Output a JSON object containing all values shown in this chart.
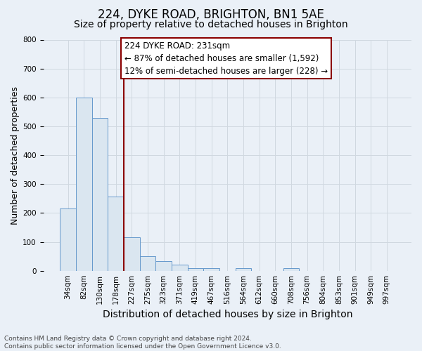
{
  "title": "224, DYKE ROAD, BRIGHTON, BN1 5AE",
  "subtitle": "Size of property relative to detached houses in Brighton",
  "xlabel": "Distribution of detached houses by size in Brighton",
  "ylabel": "Number of detached properties",
  "footer_line1": "Contains HM Land Registry data © Crown copyright and database right 2024.",
  "footer_line2": "Contains public sector information licensed under the Open Government Licence v3.0.",
  "bar_labels": [
    "34sqm",
    "82sqm",
    "130sqm",
    "178sqm",
    "227sqm",
    "275sqm",
    "323sqm",
    "371sqm",
    "419sqm",
    "467sqm",
    "516sqm",
    "564sqm",
    "612sqm",
    "660sqm",
    "708sqm",
    "756sqm",
    "804sqm",
    "853sqm",
    "901sqm",
    "949sqm",
    "997sqm"
  ],
  "bar_values": [
    215,
    600,
    530,
    258,
    115,
    50,
    33,
    20,
    10,
    8,
    0,
    9,
    0,
    0,
    9,
    0,
    0,
    0,
    0,
    0,
    0
  ],
  "bar_color": "#dae6f0",
  "bar_edge_color": "#6699cc",
  "vline_index": 4,
  "vline_color": "#8b0000",
  "annotation_line1": "224 DYKE ROAD: 231sqm",
  "annotation_line2": "← 87% of detached houses are smaller (1,592)",
  "annotation_line3": "12% of semi-detached houses are larger (228) →",
  "annotation_box_facecolor": "#ffffff",
  "annotation_box_edgecolor": "#8b0000",
  "ylim": [
    0,
    800
  ],
  "yticks": [
    0,
    100,
    200,
    300,
    400,
    500,
    600,
    700,
    800
  ],
  "grid_color": "#d0d8e0",
  "bg_color": "#eaf0f7",
  "title_fontsize": 12,
  "subtitle_fontsize": 10,
  "xlabel_fontsize": 10,
  "ylabel_fontsize": 9,
  "tick_fontsize": 7.5,
  "annotation_fontsize": 8.5,
  "footer_fontsize": 6.5
}
